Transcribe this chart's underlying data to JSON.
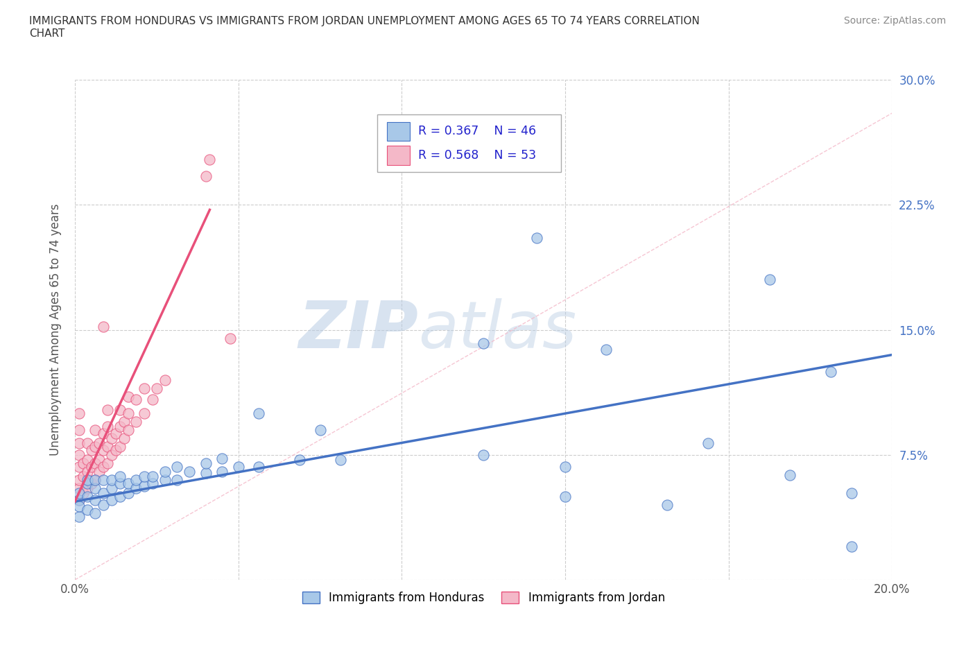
{
  "title": "IMMIGRANTS FROM HONDURAS VS IMMIGRANTS FROM JORDAN UNEMPLOYMENT AMONG AGES 65 TO 74 YEARS CORRELATION\nCHART",
  "source_text": "Source: ZipAtlas.com",
  "ylabel": "Unemployment Among Ages 65 to 74 years",
  "xlim": [
    0.0,
    0.2
  ],
  "ylim": [
    0.0,
    0.3
  ],
  "xticks": [
    0.0,
    0.04,
    0.08,
    0.12,
    0.16,
    0.2
  ],
  "yticks": [
    0.0,
    0.075,
    0.15,
    0.225,
    0.3
  ],
  "xticklabels": [
    "0.0%",
    "",
    "",
    "",
    "",
    "20.0%"
  ],
  "yticklabels_left": [
    "",
    "",
    "",
    "",
    ""
  ],
  "yticklabels_right": [
    "",
    "7.5%",
    "15.0%",
    "22.5%",
    "30.0%"
  ],
  "background_color": "#ffffff",
  "grid_color": "#cccccc",
  "watermark": "ZIPatlas",
  "color_honduras": "#a8c8e8",
  "color_jordan": "#f4b8c8",
  "line_color_honduras": "#4472c4",
  "line_color_jordan": "#e8507a",
  "scatter_honduras": [
    [
      0.001,
      0.048
    ],
    [
      0.001,
      0.038
    ],
    [
      0.001,
      0.052
    ],
    [
      0.001,
      0.044
    ],
    [
      0.003,
      0.042
    ],
    [
      0.003,
      0.05
    ],
    [
      0.003,
      0.058
    ],
    [
      0.003,
      0.06
    ],
    [
      0.005,
      0.04
    ],
    [
      0.005,
      0.048
    ],
    [
      0.005,
      0.055
    ],
    [
      0.005,
      0.06
    ],
    [
      0.007,
      0.045
    ],
    [
      0.007,
      0.052
    ],
    [
      0.007,
      0.06
    ],
    [
      0.009,
      0.048
    ],
    [
      0.009,
      0.055
    ],
    [
      0.009,
      0.06
    ],
    [
      0.011,
      0.05
    ],
    [
      0.011,
      0.058
    ],
    [
      0.011,
      0.062
    ],
    [
      0.013,
      0.052
    ],
    [
      0.013,
      0.058
    ],
    [
      0.015,
      0.055
    ],
    [
      0.015,
      0.06
    ],
    [
      0.017,
      0.056
    ],
    [
      0.017,
      0.062
    ],
    [
      0.019,
      0.058
    ],
    [
      0.019,
      0.062
    ],
    [
      0.022,
      0.06
    ],
    [
      0.022,
      0.065
    ],
    [
      0.025,
      0.06
    ],
    [
      0.025,
      0.068
    ],
    [
      0.028,
      0.065
    ],
    [
      0.032,
      0.064
    ],
    [
      0.032,
      0.07
    ],
    [
      0.036,
      0.065
    ],
    [
      0.036,
      0.073
    ],
    [
      0.04,
      0.068
    ],
    [
      0.045,
      0.068
    ],
    [
      0.045,
      0.1
    ],
    [
      0.055,
      0.072
    ],
    [
      0.06,
      0.09
    ],
    [
      0.065,
      0.072
    ],
    [
      0.1,
      0.075
    ],
    [
      0.1,
      0.142
    ],
    [
      0.113,
      0.205
    ],
    [
      0.12,
      0.068
    ],
    [
      0.13,
      0.138
    ],
    [
      0.155,
      0.082
    ],
    [
      0.17,
      0.18
    ],
    [
      0.175,
      0.063
    ],
    [
      0.185,
      0.125
    ],
    [
      0.19,
      0.02
    ],
    [
      0.19,
      0.052
    ],
    [
      0.12,
      0.05
    ],
    [
      0.145,
      0.045
    ]
  ],
  "scatter_jordan": [
    [
      0.001,
      0.048
    ],
    [
      0.001,
      0.055
    ],
    [
      0.001,
      0.06
    ],
    [
      0.001,
      0.068
    ],
    [
      0.001,
      0.075
    ],
    [
      0.001,
      0.082
    ],
    [
      0.001,
      0.09
    ],
    [
      0.001,
      0.1
    ],
    [
      0.002,
      0.052
    ],
    [
      0.002,
      0.062
    ],
    [
      0.002,
      0.07
    ],
    [
      0.003,
      0.055
    ],
    [
      0.003,
      0.065
    ],
    [
      0.003,
      0.072
    ],
    [
      0.003,
      0.082
    ],
    [
      0.004,
      0.058
    ],
    [
      0.004,
      0.068
    ],
    [
      0.004,
      0.078
    ],
    [
      0.005,
      0.06
    ],
    [
      0.005,
      0.07
    ],
    [
      0.005,
      0.08
    ],
    [
      0.005,
      0.09
    ],
    [
      0.006,
      0.065
    ],
    [
      0.006,
      0.072
    ],
    [
      0.006,
      0.082
    ],
    [
      0.007,
      0.068
    ],
    [
      0.007,
      0.078
    ],
    [
      0.007,
      0.088
    ],
    [
      0.008,
      0.07
    ],
    [
      0.008,
      0.08
    ],
    [
      0.008,
      0.092
    ],
    [
      0.008,
      0.102
    ],
    [
      0.009,
      0.075
    ],
    [
      0.009,
      0.085
    ],
    [
      0.01,
      0.078
    ],
    [
      0.01,
      0.088
    ],
    [
      0.011,
      0.08
    ],
    [
      0.011,
      0.092
    ],
    [
      0.011,
      0.102
    ],
    [
      0.012,
      0.085
    ],
    [
      0.012,
      0.095
    ],
    [
      0.013,
      0.09
    ],
    [
      0.013,
      0.1
    ],
    [
      0.013,
      0.11
    ],
    [
      0.015,
      0.095
    ],
    [
      0.015,
      0.108
    ],
    [
      0.017,
      0.1
    ],
    [
      0.017,
      0.115
    ],
    [
      0.019,
      0.108
    ],
    [
      0.02,
      0.115
    ],
    [
      0.022,
      0.12
    ],
    [
      0.007,
      0.152
    ],
    [
      0.032,
      0.242
    ],
    [
      0.033,
      0.252
    ],
    [
      0.038,
      0.145
    ]
  ]
}
